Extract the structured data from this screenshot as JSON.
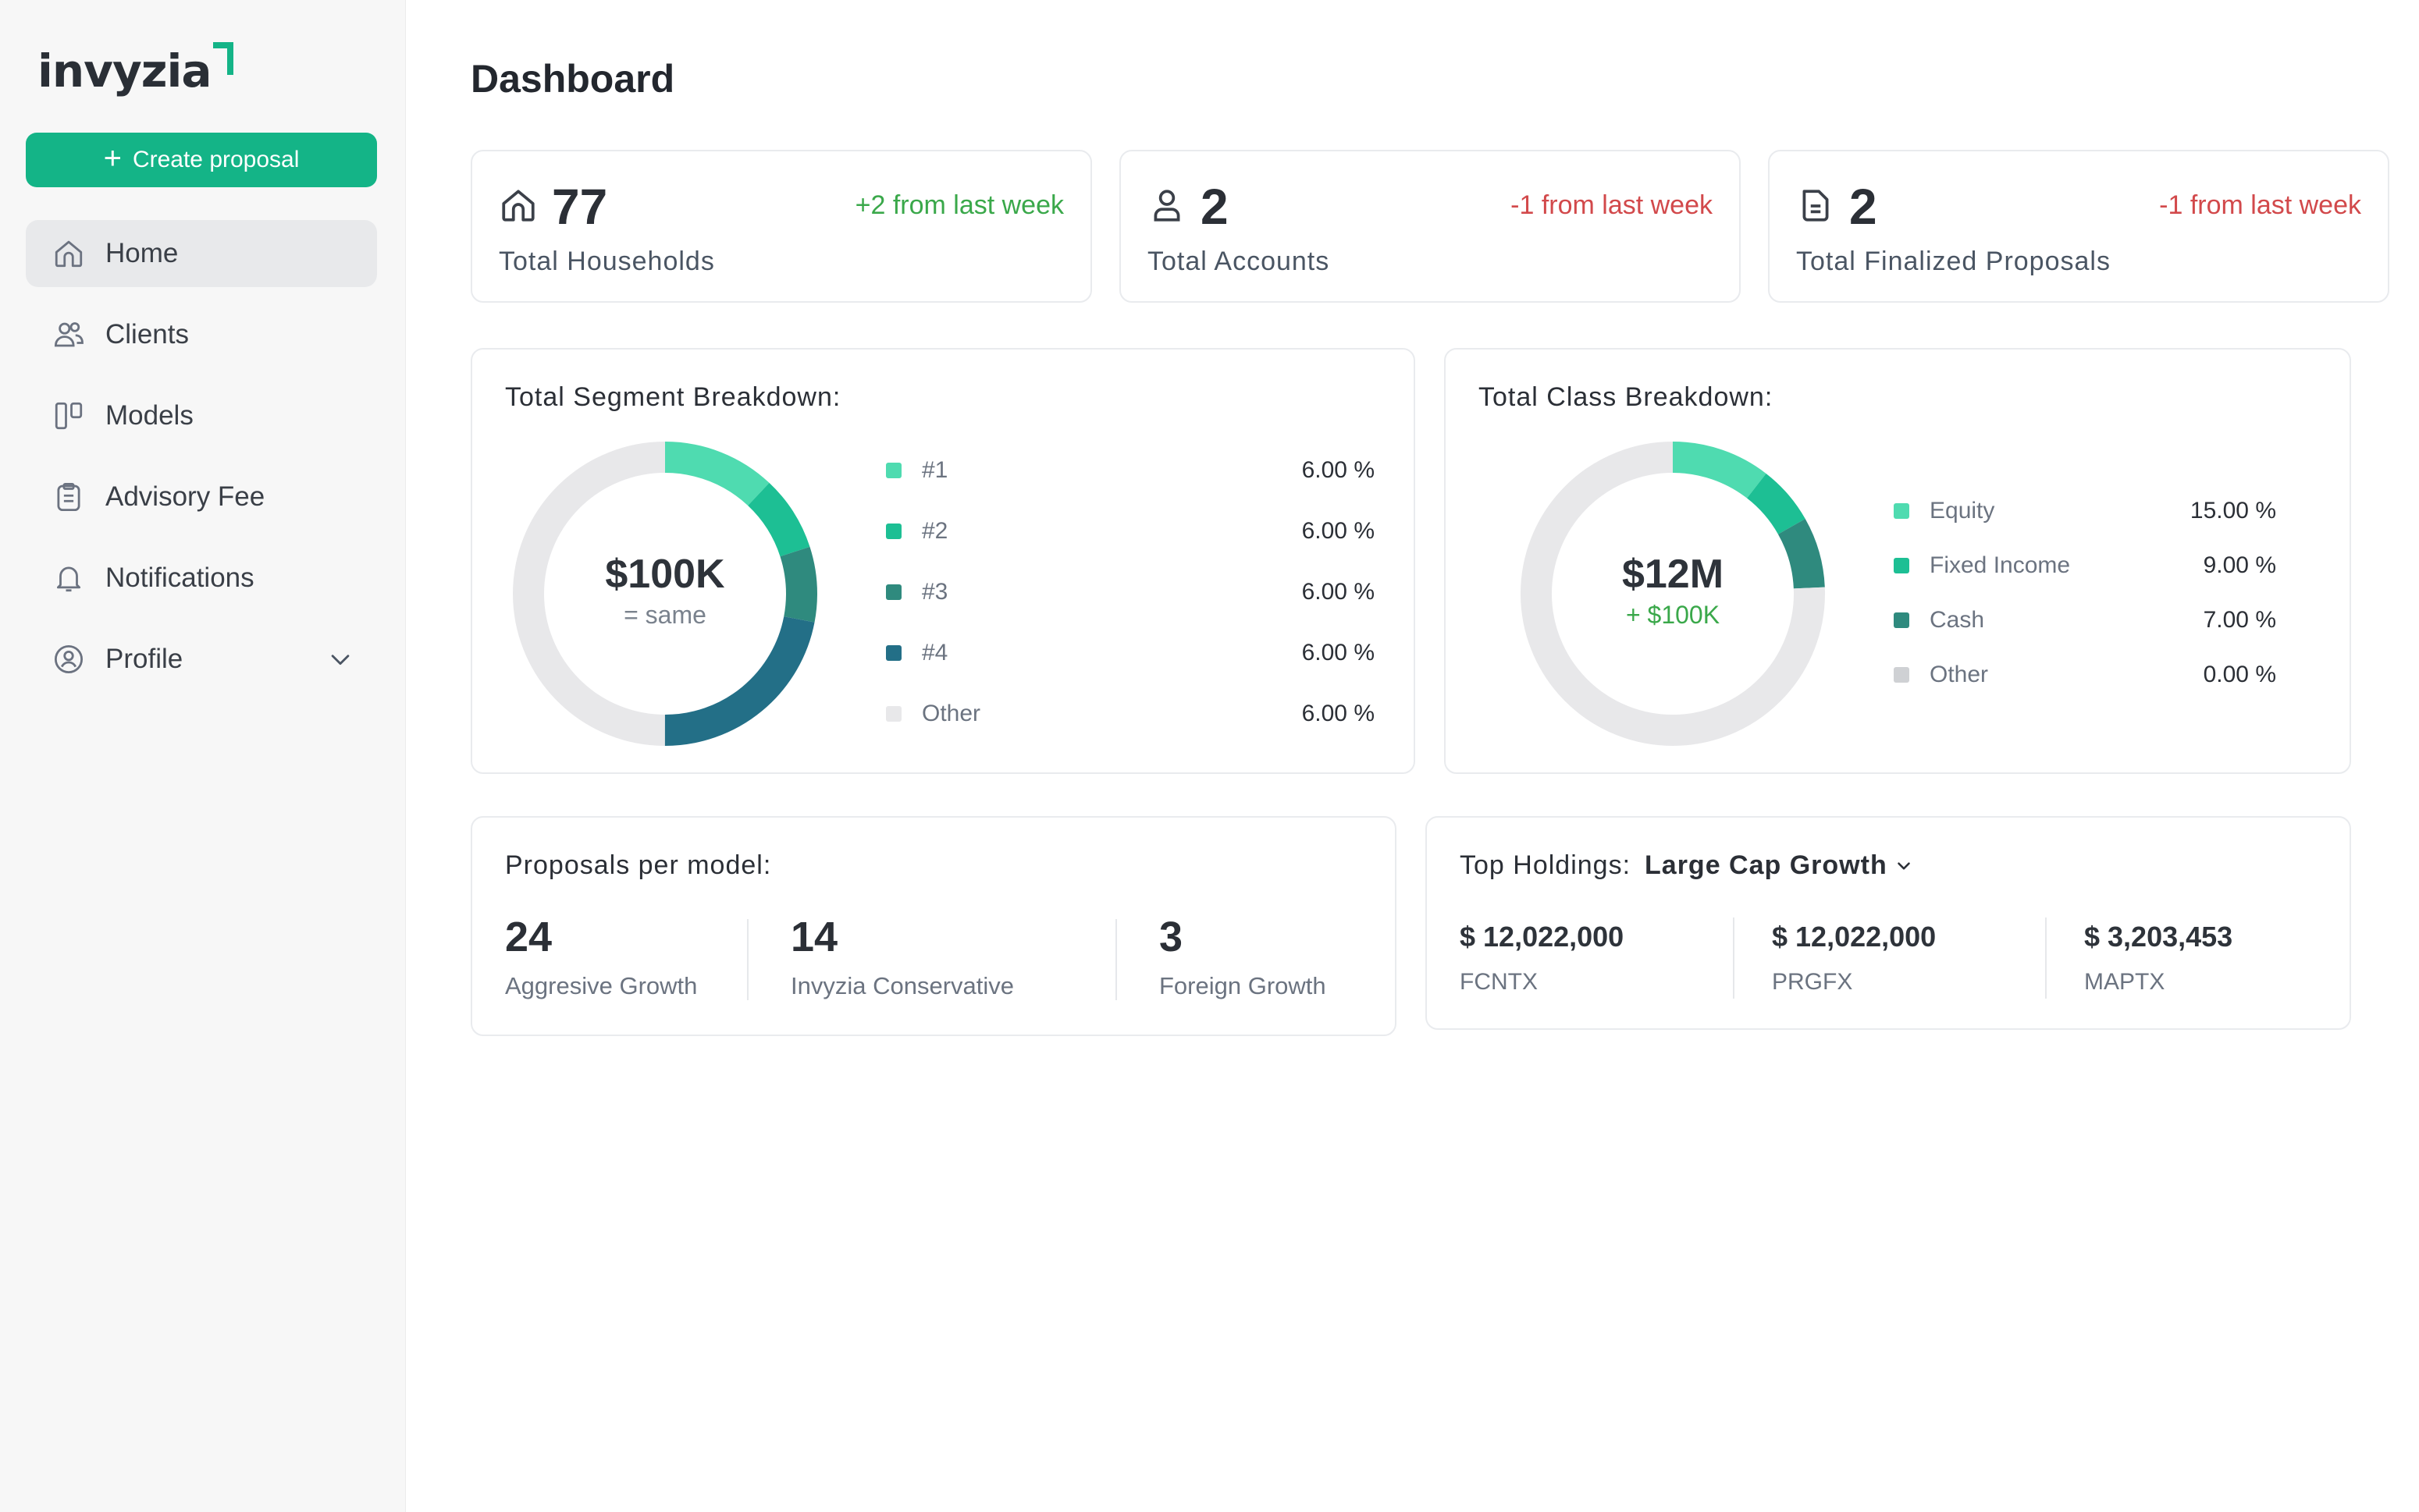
{
  "brand": {
    "name": "invyzia",
    "accent": "#14b487"
  },
  "sidebar": {
    "create_label": "Create proposal",
    "items": [
      {
        "label": "Home",
        "icon": "home-icon"
      },
      {
        "label": "Clients",
        "icon": "users-icon"
      },
      {
        "label": "Models",
        "icon": "columns-icon"
      },
      {
        "label": "Advisory Fee",
        "icon": "clipboard-icon"
      },
      {
        "label": "Notifications",
        "icon": "bell-icon"
      },
      {
        "label": "Profile",
        "icon": "user-circle-icon"
      }
    ]
  },
  "page": {
    "title": "Dashboard"
  },
  "stats": [
    {
      "value": "77",
      "label": "Total Households",
      "change": "+2 from last week",
      "trend": "up",
      "icon": "home-icon"
    },
    {
      "value": "2",
      "label": "Total Accounts",
      "change": "-1 from last week",
      "trend": "down",
      "icon": "user-icon"
    },
    {
      "value": "2",
      "label": "Total Finalized Proposals",
      "change": "-1 from last week",
      "trend": "down",
      "icon": "document-icon"
    }
  ],
  "segment": {
    "title": "Total Segment Breakdown:",
    "center_value": "$100K",
    "center_sub": "= same",
    "items": [
      {
        "label": "#1",
        "value": "6.00 %",
        "color": "#4fdbb0"
      },
      {
        "label": "#2",
        "value": "6.00 %",
        "color": "#1dbf94"
      },
      {
        "label": "#3",
        "value": "6.00 %",
        "color": "#2f8a7e"
      },
      {
        "label": "#4",
        "value": "6.00 %",
        "color": "#236f87"
      },
      {
        "label": "Other",
        "value": "6.00 %",
        "color": "#e8e8ea"
      }
    ]
  },
  "class_breakdown": {
    "title": "Total Class Breakdown:",
    "center_value": "$12M",
    "center_sub": "+ $100K",
    "items": [
      {
        "label": "Equity",
        "value": "15.00 %",
        "color": "#4fdbb0"
      },
      {
        "label": "Fixed Income",
        "value": "9.00 %",
        "color": "#1dbf94"
      },
      {
        "label": "Cash",
        "value": "7.00 %",
        "color": "#2f8a7e"
      },
      {
        "label": "Other",
        "value": "0.00 %",
        "color": "#cfd1d4"
      }
    ]
  },
  "proposals": {
    "title": "Proposals per model:",
    "items": [
      {
        "value": "24",
        "label": "Aggresive Growth"
      },
      {
        "value": "14",
        "label": "Invyzia Conservative"
      },
      {
        "value": "3",
        "label": "Foreign Growth"
      }
    ]
  },
  "holdings": {
    "title": "Top Holdings:",
    "selected": "Large Cap Growth",
    "items": [
      {
        "value": "$ 12,022,000",
        "ticker": "FCNTX"
      },
      {
        "value": "$ 12,022,000",
        "ticker": "PRGFX"
      },
      {
        "value": "$ 3,203,453",
        "ticker": "MAPTX"
      }
    ]
  },
  "chart_data": [
    {
      "type": "pie",
      "title": "Total Segment Breakdown:",
      "categories": [
        "#1",
        "#2",
        "#3",
        "#4",
        "Other"
      ],
      "values": [
        6.0,
        6.0,
        6.0,
        6.0,
        6.0
      ],
      "arc_shares": [
        0.12,
        0.08,
        0.08,
        0.22,
        0.5
      ],
      "colors": [
        "#4fdbb0",
        "#1dbf94",
        "#2f8a7e",
        "#236f87",
        "#e8e8ea"
      ]
    },
    {
      "type": "pie",
      "title": "Total Class Breakdown:",
      "categories": [
        "Equity",
        "Fixed Income",
        "Cash",
        "Other"
      ],
      "values": [
        15.0,
        9.0,
        7.0,
        0.0
      ],
      "arc_shares": [
        0.105,
        0.063,
        0.075,
        0.757
      ],
      "colors": [
        "#4fdbb0",
        "#1dbf94",
        "#2f8a7e",
        "#e8e8ea"
      ]
    }
  ]
}
